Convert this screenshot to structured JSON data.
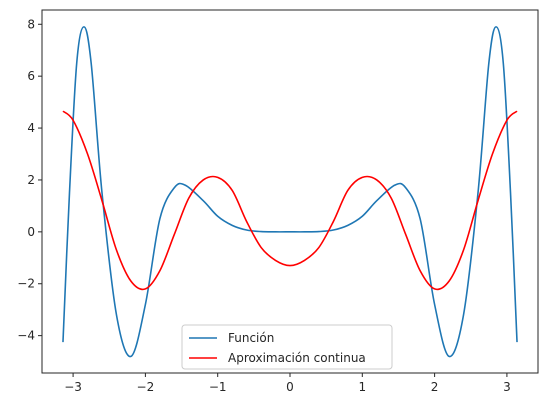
{
  "chart_data": {
    "type": "line",
    "title": "",
    "xlabel": "",
    "ylabel": "",
    "xlim": [
      -3.43,
      3.43
    ],
    "ylim": [
      -5.44,
      8.55
    ],
    "grid": false,
    "legend_position": "bottom-center",
    "x_ticks": [
      -3,
      -2,
      -1,
      0,
      1,
      2,
      3
    ],
    "x_tick_labels": [
      "−3",
      "−2",
      "−1",
      "0",
      "1",
      "2",
      "3"
    ],
    "y_ticks": [
      -4,
      -2,
      0,
      2,
      4,
      6,
      8
    ],
    "y_tick_labels": [
      "−4",
      "−2",
      "0",
      "2",
      "4",
      "6",
      "8"
    ],
    "series": [
      {
        "name": "Función",
        "color": "#1f77b4",
        "x": [
          -3.14,
          -3.05,
          -2.95,
          -2.85,
          -2.75,
          -2.6,
          -2.4,
          -2.2,
          -2.0,
          -1.8,
          -1.6,
          -1.45,
          -1.2,
          -1.0,
          -0.8,
          -0.6,
          -0.4,
          -0.2,
          0.0,
          0.2,
          0.4,
          0.6,
          0.8,
          1.0,
          1.2,
          1.45,
          1.6,
          1.8,
          2.0,
          2.2,
          2.4,
          2.6,
          2.75,
          2.85,
          2.95,
          3.05,
          3.14
        ],
        "y": [
          -4.25,
          1.5,
          6.5,
          7.9,
          6.5,
          1.5,
          -3.2,
          -4.8,
          -2.8,
          0.5,
          1.7,
          1.8,
          1.2,
          0.6,
          0.25,
          0.07,
          0.01,
          0.0,
          0.0,
          0.0,
          0.01,
          0.07,
          0.25,
          0.6,
          1.2,
          1.8,
          1.7,
          0.5,
          -2.8,
          -4.8,
          -3.2,
          1.5,
          6.5,
          7.9,
          6.5,
          1.5,
          -4.25
        ]
      },
      {
        "name": "Aproximación continua",
        "color": "#ff0000",
        "x": [
          -3.14,
          -3.0,
          -2.8,
          -2.6,
          -2.4,
          -2.2,
          -2.0,
          -1.8,
          -1.6,
          -1.4,
          -1.2,
          -1.0,
          -0.8,
          -0.6,
          -0.4,
          -0.2,
          0.0,
          0.2,
          0.4,
          0.6,
          0.8,
          1.0,
          1.2,
          1.4,
          1.6,
          1.8,
          2.0,
          2.2,
          2.4,
          2.6,
          2.8,
          3.0,
          3.14
        ],
        "y": [
          4.65,
          4.3,
          3.0,
          1.2,
          -0.7,
          -1.9,
          -2.2,
          -1.5,
          -0.1,
          1.3,
          2.0,
          2.1,
          1.6,
          0.4,
          -0.6,
          -1.1,
          -1.3,
          -1.1,
          -0.6,
          0.4,
          1.6,
          2.1,
          2.0,
          1.3,
          -0.1,
          -1.5,
          -2.2,
          -1.9,
          -0.7,
          1.2,
          3.0,
          4.3,
          4.65
        ]
      }
    ]
  }
}
